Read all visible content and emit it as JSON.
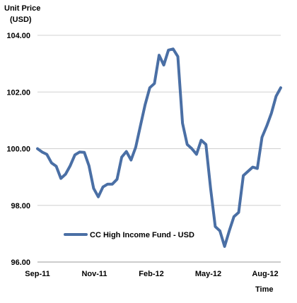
{
  "chart_data": {
    "type": "line",
    "ylabel_line1": "Unit Price",
    "ylabel_line2": "(USD)",
    "xlabel": "Time",
    "ylim": [
      96,
      104
    ],
    "yticks": [
      "96.00",
      "98.00",
      "100.00",
      "102.00",
      "104.00"
    ],
    "ytick_values": [
      96,
      98,
      100,
      102,
      104
    ],
    "xticks": [
      "Sep-11",
      "Nov-11",
      "Feb-12",
      "May-12",
      "Aug-12"
    ],
    "grid": "horizontal",
    "legend_position": "bottom-left",
    "series": [
      {
        "name": "CC High Income Fund - USD",
        "color": "#4a6fa5",
        "values": [
          100.0,
          99.88,
          99.8,
          99.5,
          99.38,
          98.95,
          99.1,
          99.4,
          99.78,
          99.88,
          99.87,
          99.4,
          98.6,
          98.3,
          98.65,
          98.75,
          98.75,
          98.92,
          99.7,
          99.9,
          99.6,
          100.05,
          100.8,
          101.55,
          102.15,
          102.3,
          103.3,
          102.95,
          103.48,
          103.52,
          103.25,
          100.9,
          100.15,
          100.0,
          99.8,
          100.3,
          100.15,
          98.6,
          97.25,
          97.1,
          96.55,
          97.1,
          97.6,
          97.75,
          99.05,
          99.2,
          99.35,
          99.3,
          100.4,
          100.8,
          101.25,
          101.85,
          102.15
        ]
      }
    ]
  }
}
